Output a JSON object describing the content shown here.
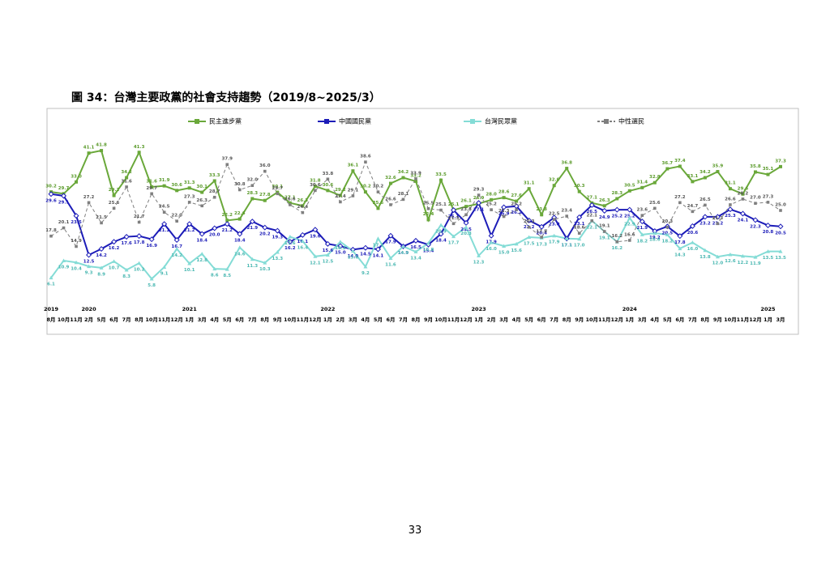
{
  "chart_data": {
    "type": "line",
    "title": "圖 34：台灣主要政黨的社會支持趨勢（2019/8~2025/3）",
    "categories": [
      "8月",
      "10月",
      "11月",
      "2月",
      "5月",
      "6月",
      "7月",
      "8月",
      "10月",
      "11月",
      "12月",
      "1月",
      "3月",
      "4月",
      "5月",
      "6月",
      "7月",
      "8月",
      "9月",
      "10月",
      "11月",
      "12月",
      "1月",
      "2月",
      "3月",
      "4月",
      "5月",
      "6月",
      "7月",
      "8月",
      "9月",
      "10月",
      "11月",
      "12月",
      "1月",
      "2月",
      "3月",
      "4月",
      "5月",
      "6月",
      "7月",
      "8月",
      "9月",
      "10月",
      "11月",
      "12月",
      "1月",
      "3月",
      "4月",
      "5月",
      "6月",
      "7月",
      "8月",
      "9月",
      "10月",
      "11月",
      "12月",
      "1月",
      "3月"
    ],
    "year_labels": [
      "2019",
      null,
      null,
      "2020",
      null,
      null,
      null,
      null,
      null,
      null,
      null,
      "2021",
      null,
      null,
      null,
      null,
      null,
      null,
      null,
      null,
      null,
      null,
      "2022",
      null,
      null,
      null,
      null,
      null,
      null,
      null,
      null,
      null,
      null,
      null,
      "2023",
      null,
      null,
      null,
      null,
      null,
      null,
      null,
      null,
      null,
      null,
      null,
      "2024",
      null,
      null,
      null,
      null,
      null,
      null,
      null,
      null,
      null,
      null,
      "2025",
      null
    ],
    "ylim": [
      0,
      45
    ],
    "series": [
      {
        "name": "民主進步黨",
        "color": "#6aa83a",
        "label_color": "#5a9a2a",
        "dash": false,
        "values": [
          30.2,
          29.7,
          33,
          41.1,
          41.8,
          29.2,
          34.2,
          41.3,
          31.6,
          31.9,
          30.6,
          31.3,
          30.1,
          33.3,
          22.2,
          22.6,
          28.3,
          27.8,
          30.1,
          27.1,
          26.3,
          31.8,
          30.6,
          29.2,
          36.1,
          30.2,
          25.6,
          32.6,
          34.2,
          33.2,
          22.4,
          33.5,
          25.1,
          26.1,
          26.9,
          28,
          28.6,
          27.6,
          31.1,
          23.8,
          32,
          36.8,
          30.3,
          27.1,
          26.3,
          28.3,
          30.5,
          31.4,
          32.8,
          36.7,
          37.4,
          33.1,
          34.2,
          35.9,
          31.1,
          29.6,
          35.8,
          35.1,
          37.3
        ],
        "value_labels": [
          "30.2",
          "29.7",
          "33.0",
          "41.1",
          "41.8",
          "29.2",
          "34.2",
          "41.3",
          "31.6",
          "31.9",
          "30.6",
          "31.3",
          "30.1",
          "33.3",
          "22.2",
          "22.6",
          "28.3",
          "27.8",
          "30.1",
          "27.1",
          "26.3",
          "31.8",
          "30.6",
          "29.2",
          "36.1",
          "30.2",
          "25.6",
          "32.6",
          "34.2",
          "33.2",
          "22.4",
          "33.5",
          "25.1",
          "26.1",
          "26.9",
          "28.0",
          "28.6",
          "27.6",
          "31.1",
          "23.8",
          "32.0",
          "36.8",
          "30.3",
          "27.1",
          "26.3",
          "28.3",
          "30.5",
          "31.4",
          "32.8",
          "36.7",
          "37.4",
          "33.1",
          "34.2",
          "35.9",
          "31.1",
          "29.6",
          "35.8",
          "35.1",
          "37.3"
        ]
      },
      {
        "name": "中國國民黨",
        "color": "#1c1cb8",
        "label_color": "#1c1cb8",
        "dash": false,
        "values": [
          29.6,
          29.1,
          23.5,
          12.5,
          14.2,
          16.2,
          17.6,
          17.8,
          16.9,
          21.2,
          16.7,
          21.2,
          18.4,
          20,
          21.2,
          18.4,
          21.9,
          20.2,
          19.3,
          16.2,
          18.1,
          19.6,
          15.6,
          15,
          14,
          14.5,
          14.1,
          17.9,
          14.9,
          16.5,
          15.4,
          18.4,
          25.1,
          21.5,
          27.1,
          17.9,
          25.9,
          26.2,
          22.2,
          20.4,
          23,
          17.1,
          23.1,
          26.5,
          24.9,
          25.2,
          25.2,
          21.9,
          19.2,
          20.5,
          17.8,
          20.6,
          23.2,
          23.2,
          25.3,
          24.1,
          22.3,
          20.8,
          20.5
        ],
        "value_labels": [
          "29.6",
          "29.1",
          "23.5",
          "12.5",
          "14.2",
          "16.2",
          "17.6",
          "17.8",
          "16.9",
          "21.2",
          "16.7",
          "21.2",
          "18.4",
          "20.0",
          "21.2",
          "18.4",
          "21.9",
          "20.2",
          "19.3",
          "16.2",
          "18.1",
          "19.6",
          "15.6",
          "15.0",
          "14.0",
          "14.5",
          "14.1",
          "17.9",
          "14.9",
          "16.5",
          "15.4",
          "18.4",
          "25.1",
          "21.5",
          "27.1",
          "17.9",
          "25.9",
          "26.2",
          "22.2",
          "20.4",
          "23.0",
          "17.1",
          "23.1",
          "26.5",
          "24.9",
          "25.2",
          "25.2",
          "21.9",
          "19.2",
          "20.5",
          "17.8",
          "20.6",
          "23.2",
          "23.2",
          "25.3",
          "24.1",
          "22.3",
          "20.8",
          "20.5"
        ]
      },
      {
        "name": "台灣民眾黨",
        "color": "#84dcd6",
        "label_color": "#4bb8b2",
        "dash": false,
        "values": [
          6.1,
          10.9,
          10.4,
          9.3,
          8.9,
          10.7,
          8.3,
          10.2,
          5.8,
          9.1,
          14.2,
          10.1,
          12.8,
          8.6,
          8.5,
          14.6,
          11.3,
          10.3,
          13.3,
          17.6,
          16.4,
          12.1,
          12.5,
          16.2,
          13.6,
          9.2,
          17.1,
          11.6,
          14.9,
          13.4,
          15.8,
          20.9,
          17.7,
          20.3,
          12.3,
          16,
          15,
          15.6,
          17.5,
          17.3,
          17.9,
          17.1,
          17,
          22.1,
          19.1,
          16.2,
          22.9,
          18.2,
          18.6,
          18.2,
          14.3,
          16,
          13.8,
          12,
          12.6,
          12.2,
          11.9,
          13.5,
          13.5
        ],
        "value_labels": [
          "6.1",
          "10.9",
          "10.4",
          "9.3",
          "8.9",
          "10.7",
          "8.3",
          "10.2",
          "5.8",
          "9.1",
          "14.2",
          "10.1",
          "12.8",
          "8.6",
          "8.5",
          "14.6",
          "11.3",
          "10.3",
          "13.3",
          "17.6",
          "16.4",
          "12.1",
          "12.5",
          "16.2",
          "13.6",
          "9.2",
          "17.1",
          "11.6",
          "14.9",
          "13.4",
          "15.8",
          "20.9",
          "17.7",
          "20.3",
          "12.3",
          "16.0",
          "15.0",
          "15.6",
          "17.5",
          "17.3",
          "17.9",
          "17.1",
          "17.0",
          "22.1",
          "19.1",
          "16.2",
          "22.9",
          "18.2",
          "18.6",
          "18.2",
          "14.3",
          "16.0",
          "13.8",
          "12.0",
          "12.6",
          "12.2",
          "11.9",
          "13.5",
          "13.5"
        ]
      },
      {
        "name": "中性選民",
        "color": "#7f7f7f",
        "label_color": "#555555",
        "dash": true,
        "values": [
          17.8,
          20.1,
          14.9,
          27.2,
          21.5,
          25.6,
          31.6,
          21.7,
          29.7,
          24.5,
          22,
          27.3,
          26.3,
          28.7,
          37.9,
          30.8,
          32,
          36,
          29.7,
          26.6,
          24.4,
          30.6,
          33.8,
          27.4,
          29.1,
          38.6,
          30.2,
          26.6,
          28.1,
          33.9,
          25.5,
          25.1,
          21.3,
          23.8,
          29.3,
          25.2,
          23.3,
          25.2,
          20.3,
          17.5,
          22.5,
          23.4,
          18.6,
          22.1,
          19.1,
          16.2,
          16.6,
          23.6,
          25.6,
          20.3,
          27.2,
          24.7,
          26.5,
          21.3,
          26.6,
          28.2,
          27,
          27.3,
          25
        ],
        "value_labels": [
          "17.8",
          "20.1",
          "14.9",
          "27.2",
          "21.5",
          "25.6",
          "31.6",
          "21.7",
          "29.7",
          "24.5",
          "22.0",
          "27.3",
          "26.3",
          "28.7",
          "37.9",
          "30.8",
          "32.0",
          "36.0",
          "29.7",
          "26.6",
          "24.4",
          "30.6",
          "33.8",
          "27.4",
          "29.1",
          "38.6",
          "30.2",
          "26.6",
          "28.1",
          "33.9",
          "25.5",
          "25.1",
          "21.3",
          "23.8",
          "29.3",
          "25.2",
          "23.3",
          "25.2",
          "20.3",
          "17.5",
          "22.5",
          "23.4",
          "18.6",
          "22.1",
          "19.1",
          "16.2",
          "16.6",
          "23.6",
          "25.6",
          "20.3",
          "27.2",
          "24.7",
          "26.5",
          "21.3",
          "26.6",
          "28.2",
          "27.0",
          "27.3",
          "25.0"
        ]
      }
    ]
  },
  "page_number": "33"
}
